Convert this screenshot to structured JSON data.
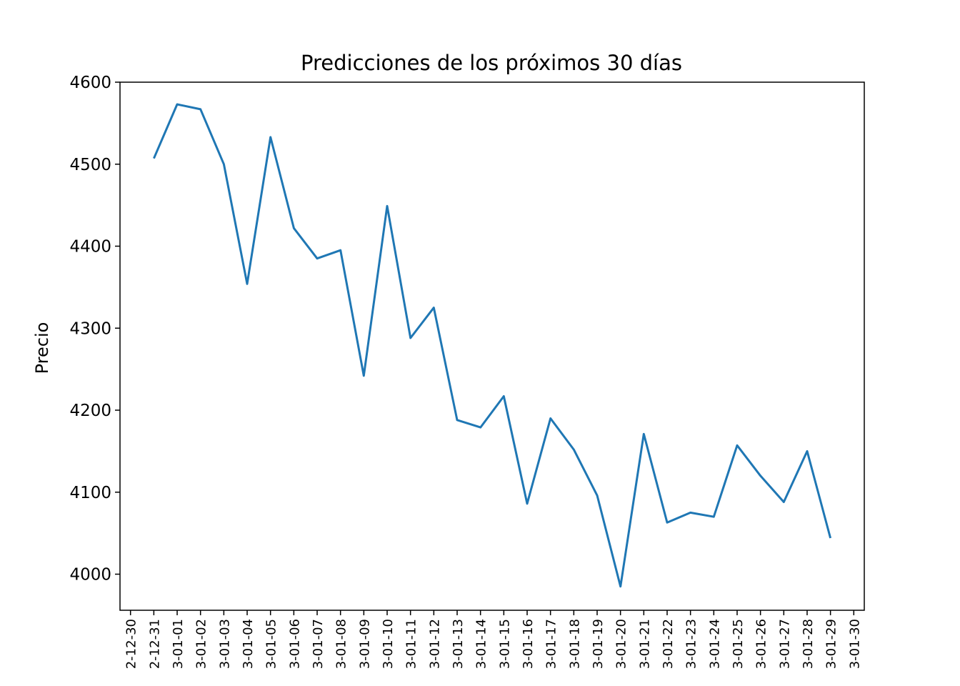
{
  "chart_data": {
    "type": "line",
    "title": "Predicciones de los próximos 30 días",
    "xlabel": "",
    "ylabel": "Precio",
    "ylim": [
      3956,
      4600
    ],
    "yticks": [
      4000,
      4100,
      4200,
      4300,
      4400,
      4500,
      4600
    ],
    "xlim_index": [
      -0.45,
      31.45
    ],
    "xtick_labels": [
      "2-12-30",
      "2-12-31",
      "3-01-01",
      "3-01-02",
      "3-01-03",
      "3-01-04",
      "3-01-05",
      "3-01-06",
      "3-01-07",
      "3-01-08",
      "3-01-09",
      "3-01-10",
      "3-01-11",
      "3-01-12",
      "3-01-13",
      "3-01-14",
      "3-01-15",
      "3-01-16",
      "3-01-17",
      "3-01-18",
      "3-01-19",
      "3-01-20",
      "3-01-21",
      "3-01-22",
      "3-01-23",
      "3-01-24",
      "3-01-25",
      "3-01-26",
      "3-01-27",
      "3-01-28",
      "3-01-29",
      "3-01-30"
    ],
    "x_start_index": 1,
    "grid": false,
    "color": "#1f77b4",
    "series": [
      {
        "values": [
          4507,
          4573,
          4567,
          4500,
          4354,
          4533,
          4422,
          4385,
          4395,
          4242,
          4449,
          4288,
          4325,
          4188,
          4179,
          4217,
          4086,
          4190,
          4152,
          4096,
          3985,
          4171,
          4063,
          4075,
          4070,
          4157,
          4120,
          4088,
          4150,
          4044
        ]
      }
    ]
  }
}
